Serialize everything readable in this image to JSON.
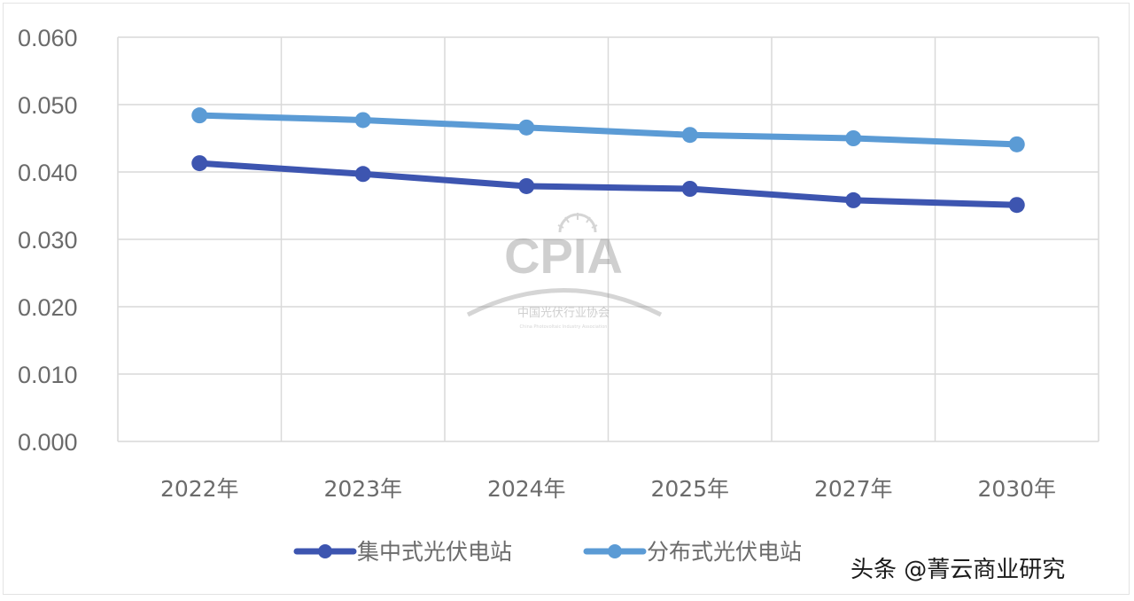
{
  "chart_data": {
    "type": "line",
    "title": "",
    "xlabel": "",
    "ylabel": "",
    "categories": [
      "2022年",
      "2023年",
      "2024年",
      "2025年",
      "2027年",
      "2030年"
    ],
    "series": [
      {
        "name": "集中式光伏电站",
        "color": "#3d55b0",
        "values": [
          0.0413,
          0.0397,
          0.0379,
          0.0375,
          0.0358,
          0.0351
        ]
      },
      {
        "name": "分布式光伏电站",
        "color": "#5b9bd5",
        "values": [
          0.0484,
          0.0477,
          0.0466,
          0.0455,
          0.045,
          0.0441
        ]
      }
    ],
    "yticks": [
      "0.000",
      "0.010",
      "0.020",
      "0.030",
      "0.040",
      "0.050",
      "0.060"
    ],
    "ylim": [
      0,
      0.06
    ],
    "grid": true,
    "legend_position": "bottom"
  },
  "watermark": {
    "logo_text": "CPIA",
    "logo_subtitle": "中国光伏行业协会",
    "logo_subtitle_en": "China Photovoltaic Industry Association"
  },
  "source_credit": "头条 @菁云商业研究"
}
